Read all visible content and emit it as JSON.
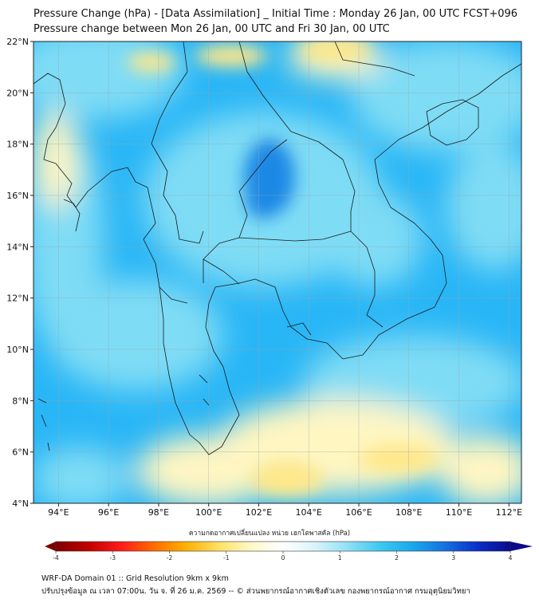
{
  "title": {
    "line1": "Pressure Change (hPa) - [Data Assimilation] _ Initial Time : Monday 26 Jan, 00 UTC FCST+096",
    "line2": "Pressure change between Mon 26 Jan, 00 UTC and Fri 30 Jan, 00 UTC"
  },
  "map": {
    "lat_range": [
      4,
      22
    ],
    "lon_range": [
      93,
      112.5
    ],
    "lat_ticks": [
      {
        "value": 22,
        "label": "22°N"
      },
      {
        "value": 20,
        "label": "20°N"
      },
      {
        "value": 18,
        "label": "18°N"
      },
      {
        "value": 16,
        "label": "16°N"
      },
      {
        "value": 14,
        "label": "14°N"
      },
      {
        "value": 12,
        "label": "12°N"
      },
      {
        "value": 10,
        "label": "10°N"
      },
      {
        "value": 8,
        "label": "8°N"
      },
      {
        "value": 6,
        "label": "6°N"
      },
      {
        "value": 4,
        "label": "4°N"
      }
    ],
    "lon_ticks": [
      {
        "value": 94,
        "label": "94°E"
      },
      {
        "value": 96,
        "label": "96°E"
      },
      {
        "value": 98,
        "label": "98°E"
      },
      {
        "value": 100,
        "label": "100°E"
      },
      {
        "value": 102,
        "label": "102°E"
      },
      {
        "value": 104,
        "label": "104°E"
      },
      {
        "value": 106,
        "label": "106°E"
      },
      {
        "value": 108,
        "label": "108°E"
      },
      {
        "value": 110,
        "label": "110°E"
      },
      {
        "value": 112,
        "label": "112°E"
      }
    ],
    "gridlines": true,
    "field_colors": {
      "strong_rise": "#1e88e5",
      "rise": "#29b6f6",
      "weak_rise": "#7fdcf5",
      "near_zero": "#dff6fb",
      "weak_fall": "#fff6c2",
      "fall": "#ffe88a"
    }
  },
  "colorbar": {
    "label": "ความกดอากาศเปลี่ยนแปลง หน่วย เฮกโตพาสคัล (hPa)",
    "min": -4,
    "max": 4,
    "ticks": [
      {
        "value": -4,
        "label": "-4"
      },
      {
        "value": -3,
        "label": "-3"
      },
      {
        "value": -2,
        "label": "-2"
      },
      {
        "value": -1,
        "label": "-1"
      },
      {
        "value": 0,
        "label": "0"
      },
      {
        "value": 1,
        "label": "1"
      },
      {
        "value": 2,
        "label": "2"
      },
      {
        "value": 3,
        "label": "3"
      },
      {
        "value": 4,
        "label": "4"
      }
    ],
    "colors": [
      "#7f0000",
      "#c00000",
      "#ff1a1a",
      "#ff6a00",
      "#ffb000",
      "#ffe060",
      "#fff8c8",
      "#ffffff",
      "#d8f4fa",
      "#8fe0f5",
      "#3cc8f0",
      "#1aa8ec",
      "#1570e0",
      "#0a2fc8",
      "#0a0a8a"
    ]
  },
  "footer": {
    "line1": "WRF-DA Domain 01 :: Grid Resolution 9km x 9km",
    "line2": "ปรับปรุงข้อมูล ณ เวลา 07:00น. วัน จ. ที่ 26 ม.ค. 2569 -- © ส่วนพยากรณ์อากาศเชิงตัวเลข กองพยากรณ์อากาศ กรมอุตุนิยมวิทยา"
  }
}
